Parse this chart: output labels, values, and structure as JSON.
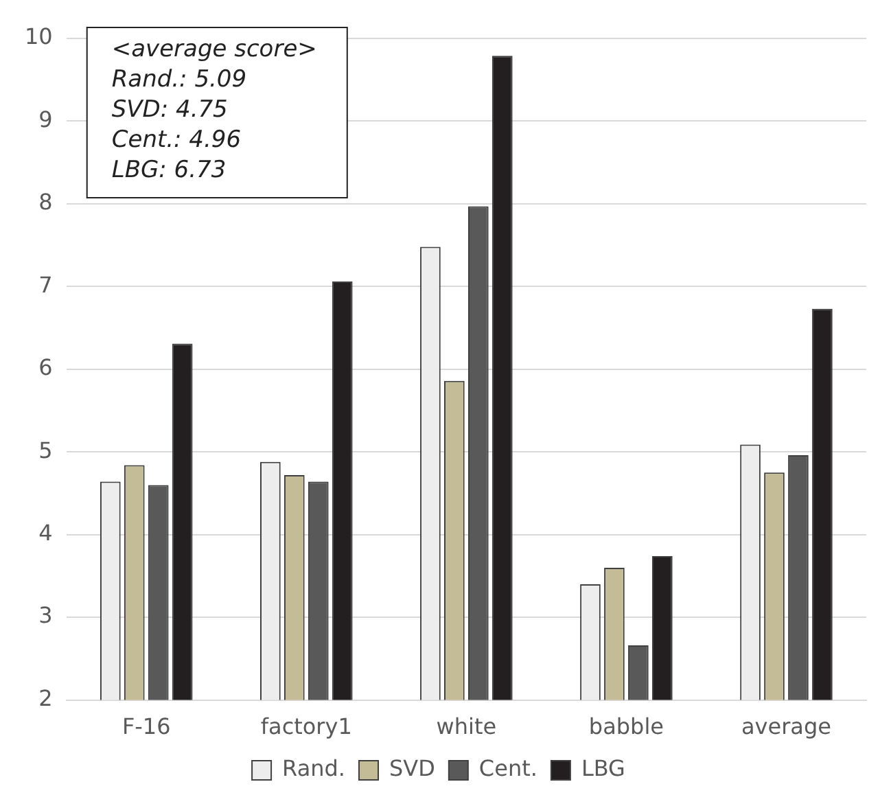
{
  "chart_data": {
    "type": "bar",
    "categories": [
      "F-16",
      "factory1",
      "white",
      "babble",
      "average"
    ],
    "series": [
      {
        "name": "Rand.",
        "color": "#ededed",
        "values": [
          4.64,
          4.88,
          7.48,
          3.4,
          5.09
        ]
      },
      {
        "name": "SVD",
        "color": "#c4bc96",
        "values": [
          4.84,
          4.72,
          5.86,
          3.6,
          4.75
        ]
      },
      {
        "name": "Cent.",
        "color": "#595959",
        "values": [
          4.6,
          4.64,
          7.97,
          2.66,
          4.96
        ]
      },
      {
        "name": "LBG",
        "color": "#231f20",
        "values": [
          6.31,
          7.06,
          9.79,
          3.74,
          6.73
        ]
      }
    ],
    "ylim": [
      2,
      10
    ],
    "yticks": [
      2,
      3,
      4,
      5,
      6,
      7,
      8,
      9,
      10
    ],
    "grid": "y",
    "legend": "bottom",
    "annotations": [
      "<average score>",
      "Rand.: 5.09",
      "SVD: 4.75",
      "Cent.: 4.96",
      "LBG: 6.73"
    ]
  }
}
